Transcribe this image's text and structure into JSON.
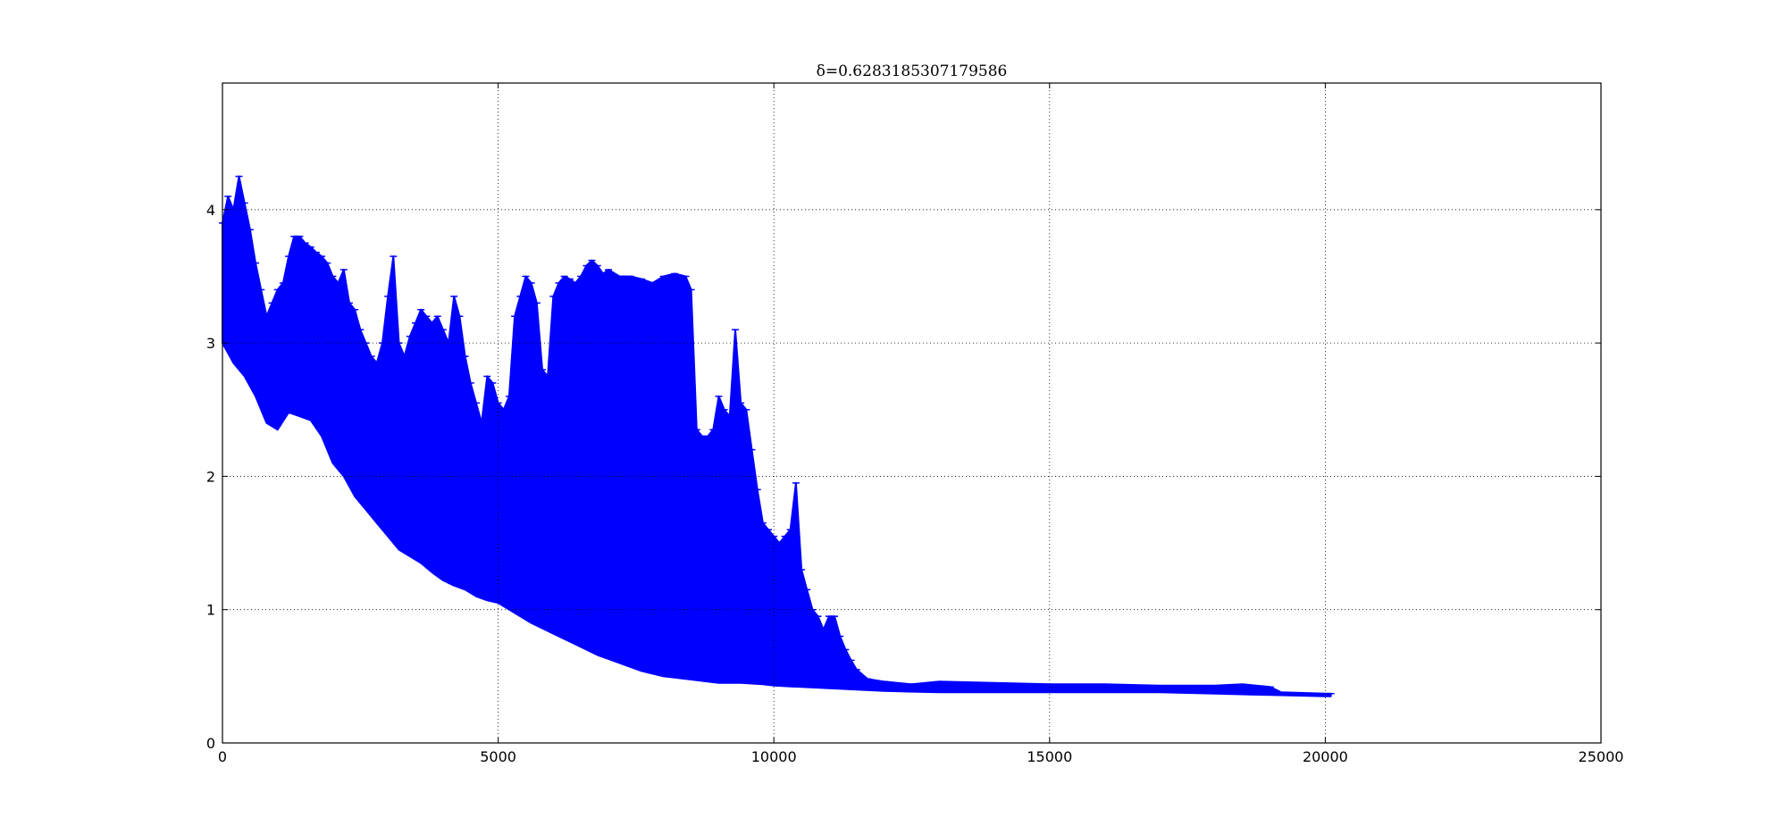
{
  "chart_data": {
    "type": "area",
    "title": "δ=0.6283185307179586",
    "xlabel": "",
    "ylabel": "",
    "xlim": [
      0,
      25000
    ],
    "ylim": [
      0,
      4.95
    ],
    "x_ticks": [
      0,
      5000,
      10000,
      15000,
      20000,
      25000
    ],
    "x_tick_labels": [
      "0",
      "5000",
      "10000",
      "15000",
      "20000",
      "25000"
    ],
    "y_ticks": [
      0,
      1,
      2,
      3,
      4
    ],
    "y_tick_labels": [
      "0",
      "1",
      "2",
      "3",
      "4"
    ],
    "grid": true,
    "grid_style": "dotted",
    "color": "#0000ff",
    "description_note": "error-bar band: upper and lower envelope of error bars",
    "series": [
      {
        "upper": [
          [
            0,
            3.9
          ],
          [
            100,
            4.1
          ],
          [
            200,
            4.0
          ],
          [
            300,
            4.25
          ],
          [
            400,
            4.05
          ],
          [
            500,
            3.85
          ],
          [
            600,
            3.6
          ],
          [
            700,
            3.4
          ],
          [
            800,
            3.2
          ],
          [
            900,
            3.3
          ],
          [
            1000,
            3.4
          ],
          [
            1100,
            3.45
          ],
          [
            1200,
            3.65
          ],
          [
            1300,
            3.8
          ],
          [
            1400,
            3.8
          ],
          [
            1500,
            3.75
          ],
          [
            1600,
            3.72
          ],
          [
            1700,
            3.68
          ],
          [
            1800,
            3.65
          ],
          [
            1900,
            3.6
          ],
          [
            2000,
            3.5
          ],
          [
            2100,
            3.45
          ],
          [
            2200,
            3.55
          ],
          [
            2300,
            3.3
          ],
          [
            2400,
            3.25
          ],
          [
            2500,
            3.1
          ],
          [
            2600,
            3.0
          ],
          [
            2700,
            2.9
          ],
          [
            2800,
            2.85
          ],
          [
            2900,
            3.0
          ],
          [
            3000,
            3.35
          ],
          [
            3100,
            3.65
          ],
          [
            3200,
            3.0
          ],
          [
            3300,
            2.9
          ],
          [
            3400,
            3.05
          ],
          [
            3500,
            3.15
          ],
          [
            3600,
            3.25
          ],
          [
            3700,
            3.2
          ],
          [
            3800,
            3.15
          ],
          [
            3900,
            3.2
          ],
          [
            4000,
            3.1
          ],
          [
            4100,
            3.0
          ],
          [
            4200,
            3.35
          ],
          [
            4300,
            3.2
          ],
          [
            4400,
            2.9
          ],
          [
            4500,
            2.7
          ],
          [
            4600,
            2.55
          ],
          [
            4700,
            2.4
          ],
          [
            4800,
            2.75
          ],
          [
            4900,
            2.7
          ],
          [
            5000,
            2.55
          ],
          [
            5100,
            2.5
          ],
          [
            5200,
            2.6
          ],
          [
            5300,
            3.2
          ],
          [
            5400,
            3.35
          ],
          [
            5500,
            3.5
          ],
          [
            5600,
            3.45
          ],
          [
            5700,
            3.3
          ],
          [
            5800,
            2.8
          ],
          [
            5900,
            2.75
          ],
          [
            6000,
            3.35
          ],
          [
            6100,
            3.45
          ],
          [
            6200,
            3.5
          ],
          [
            6300,
            3.48
          ],
          [
            6400,
            3.45
          ],
          [
            6500,
            3.5
          ],
          [
            6600,
            3.58
          ],
          [
            6700,
            3.62
          ],
          [
            6800,
            3.58
          ],
          [
            6900,
            3.52
          ],
          [
            7000,
            3.55
          ],
          [
            7200,
            3.5
          ],
          [
            7400,
            3.5
          ],
          [
            7600,
            3.48
          ],
          [
            7800,
            3.45
          ],
          [
            8000,
            3.5
          ],
          [
            8200,
            3.52
          ],
          [
            8400,
            3.5
          ],
          [
            8500,
            3.4
          ],
          [
            8600,
            2.35
          ],
          [
            8700,
            2.3
          ],
          [
            8800,
            2.3
          ],
          [
            8900,
            2.35
          ],
          [
            9000,
            2.6
          ],
          [
            9100,
            2.5
          ],
          [
            9200,
            2.45
          ],
          [
            9300,
            3.1
          ],
          [
            9400,
            2.55
          ],
          [
            9500,
            2.5
          ],
          [
            9600,
            2.2
          ],
          [
            9700,
            1.9
          ],
          [
            9800,
            1.65
          ],
          [
            9900,
            1.6
          ],
          [
            10000,
            1.55
          ],
          [
            10100,
            1.5
          ],
          [
            10200,
            1.55
          ],
          [
            10300,
            1.6
          ],
          [
            10400,
            1.95
          ],
          [
            10500,
            1.3
          ],
          [
            10600,
            1.15
          ],
          [
            10700,
            1.0
          ],
          [
            10800,
            0.95
          ],
          [
            10900,
            0.85
          ],
          [
            11000,
            0.95
          ],
          [
            11100,
            0.95
          ],
          [
            11200,
            0.8
          ],
          [
            11300,
            0.7
          ],
          [
            11400,
            0.62
          ],
          [
            11500,
            0.55
          ],
          [
            11700,
            0.48
          ],
          [
            12000,
            0.46
          ],
          [
            12500,
            0.44
          ],
          [
            13000,
            0.46
          ],
          [
            14000,
            0.45
          ],
          [
            15000,
            0.44
          ],
          [
            16000,
            0.44
          ],
          [
            17000,
            0.43
          ],
          [
            18000,
            0.43
          ],
          [
            18500,
            0.44
          ],
          [
            19000,
            0.42
          ],
          [
            19200,
            0.38
          ],
          [
            20000,
            0.37
          ],
          [
            20100,
            0.37
          ]
        ],
        "lower": [
          [
            0,
            3.0
          ],
          [
            200,
            2.85
          ],
          [
            400,
            2.75
          ],
          [
            600,
            2.6
          ],
          [
            800,
            2.4
          ],
          [
            1000,
            2.35
          ],
          [
            1200,
            2.48
          ],
          [
            1400,
            2.45
          ],
          [
            1600,
            2.42
          ],
          [
            1800,
            2.3
          ],
          [
            2000,
            2.1
          ],
          [
            2200,
            2.0
          ],
          [
            2400,
            1.85
          ],
          [
            2600,
            1.75
          ],
          [
            2800,
            1.65
          ],
          [
            3000,
            1.55
          ],
          [
            3200,
            1.45
          ],
          [
            3400,
            1.4
          ],
          [
            3600,
            1.35
          ],
          [
            3800,
            1.28
          ],
          [
            4000,
            1.22
          ],
          [
            4200,
            1.18
          ],
          [
            4400,
            1.15
          ],
          [
            4600,
            1.1
          ],
          [
            4800,
            1.07
          ],
          [
            5000,
            1.05
          ],
          [
            5200,
            1.0
          ],
          [
            5400,
            0.95
          ],
          [
            5600,
            0.9
          ],
          [
            5800,
            0.86
          ],
          [
            6000,
            0.82
          ],
          [
            6200,
            0.78
          ],
          [
            6400,
            0.74
          ],
          [
            6600,
            0.7
          ],
          [
            6800,
            0.66
          ],
          [
            7000,
            0.63
          ],
          [
            7200,
            0.6
          ],
          [
            7400,
            0.57
          ],
          [
            7600,
            0.54
          ],
          [
            7800,
            0.52
          ],
          [
            8000,
            0.5
          ],
          [
            8200,
            0.49
          ],
          [
            8400,
            0.48
          ],
          [
            8600,
            0.47
          ],
          [
            8800,
            0.46
          ],
          [
            9000,
            0.45
          ],
          [
            9400,
            0.45
          ],
          [
            9800,
            0.44
          ],
          [
            10000,
            0.43
          ],
          [
            10500,
            0.42
          ],
          [
            11000,
            0.41
          ],
          [
            11500,
            0.4
          ],
          [
            12000,
            0.39
          ],
          [
            13000,
            0.38
          ],
          [
            14000,
            0.38
          ],
          [
            15000,
            0.38
          ],
          [
            16000,
            0.38
          ],
          [
            17000,
            0.38
          ],
          [
            18000,
            0.37
          ],
          [
            19000,
            0.36
          ],
          [
            20000,
            0.35
          ],
          [
            20100,
            0.35
          ]
        ]
      }
    ]
  }
}
